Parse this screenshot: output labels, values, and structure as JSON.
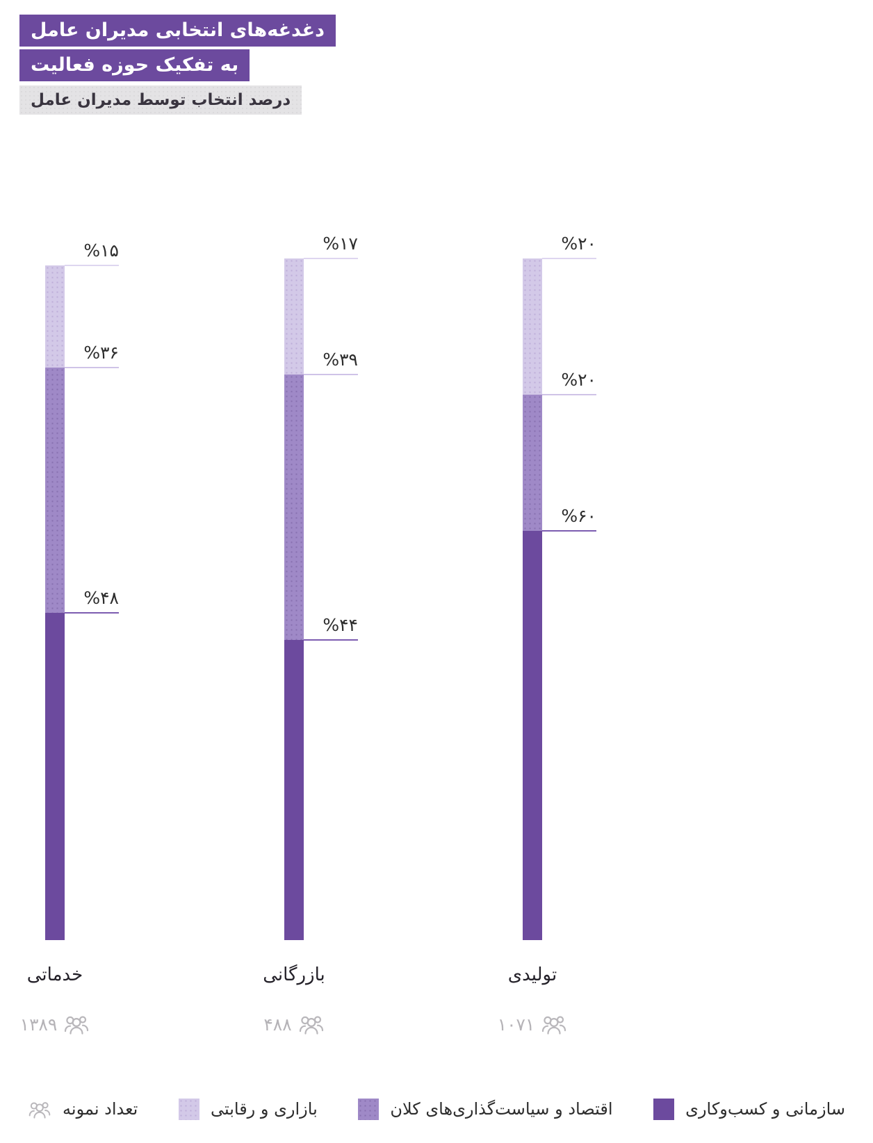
{
  "header": {
    "title_line1": "دغدغه‌های انتخابی مدیران عامل",
    "title_line2": "به تفکیک حوزه فعالیت",
    "subtitle": "درصد انتخاب توسط مدیران عامل"
  },
  "colors": {
    "primary_dark": "#6c4a9e",
    "primary_medium": "#9f89c7",
    "primary_light": "#d3c9e8",
    "marker_line_top": "#ded6f0",
    "marker_line_middle": "#cfc3e7",
    "marker_line_bottom": "#7c5cb0",
    "title_bg": "#6c4a9e",
    "subtitle_bg": "#e4e3e5",
    "muted_gray": "#b5b3b7",
    "text_dark": "#2d2d2d"
  },
  "chart_data": {
    "type": "bar",
    "stacked": true,
    "orientation": "vertical",
    "title": "دغدغه‌های انتخابی مدیران عامل به تفکیک حوزه فعالیت",
    "subtitle": "درصد انتخاب توسط مدیران عامل",
    "unit": "percent",
    "categories": [
      "خدماتی",
      "بازرگانی",
      "تولیدی"
    ],
    "series": [
      {
        "name": "بازاری و رقابتی",
        "color": "#d3c9e8",
        "values": [
          15,
          17,
          20
        ]
      },
      {
        "name": "اقتصاد و سیاست‌گذاری‌های کلان",
        "color": "#9f89c7",
        "values": [
          36,
          39,
          20
        ]
      },
      {
        "name": "سازمانی و کسب‌وکاری",
        "color": "#6c4a9e",
        "values": [
          48,
          44,
          60
        ]
      }
    ],
    "sample_sizes": [
      1389,
      488,
      1071
    ],
    "legend_position": "bottom",
    "grid": false,
    "ylim": [
      0,
      100
    ]
  },
  "columns": [
    {
      "category": "خدماتی",
      "sample_display": "۱۳۸۹",
      "segments": [
        {
          "label": "%۱۵",
          "value": 15
        },
        {
          "label": "%۳۶",
          "value": 36
        },
        {
          "label": "%۴۸",
          "value": 48
        }
      ]
    },
    {
      "category": "بازرگانی",
      "sample_display": "۴۸۸",
      "segments": [
        {
          "label": "%۱۷",
          "value": 17
        },
        {
          "label": "%۳۹",
          "value": 39
        },
        {
          "label": "%۴۴",
          "value": 44
        }
      ]
    },
    {
      "category": "تولیدی",
      "sample_display": "۱۰۷۱",
      "segments": [
        {
          "label": "%۲۰",
          "value": 20
        },
        {
          "label": "%۲۰",
          "value": 20
        },
        {
          "label": "%۶۰",
          "value": 60
        }
      ]
    }
  ],
  "legend": {
    "items": [
      {
        "label": "سازمانی و کسب‌وکاری",
        "swatch": "#6c4a9e"
      },
      {
        "label": "اقتصاد و سیاست‌گذاری‌های کلان",
        "swatch": "#9f89c7"
      },
      {
        "label": "بازاری و رقابتی",
        "swatch": "#d3c9e8"
      },
      {
        "label": "تعداد نمونه",
        "swatch": null
      }
    ]
  }
}
